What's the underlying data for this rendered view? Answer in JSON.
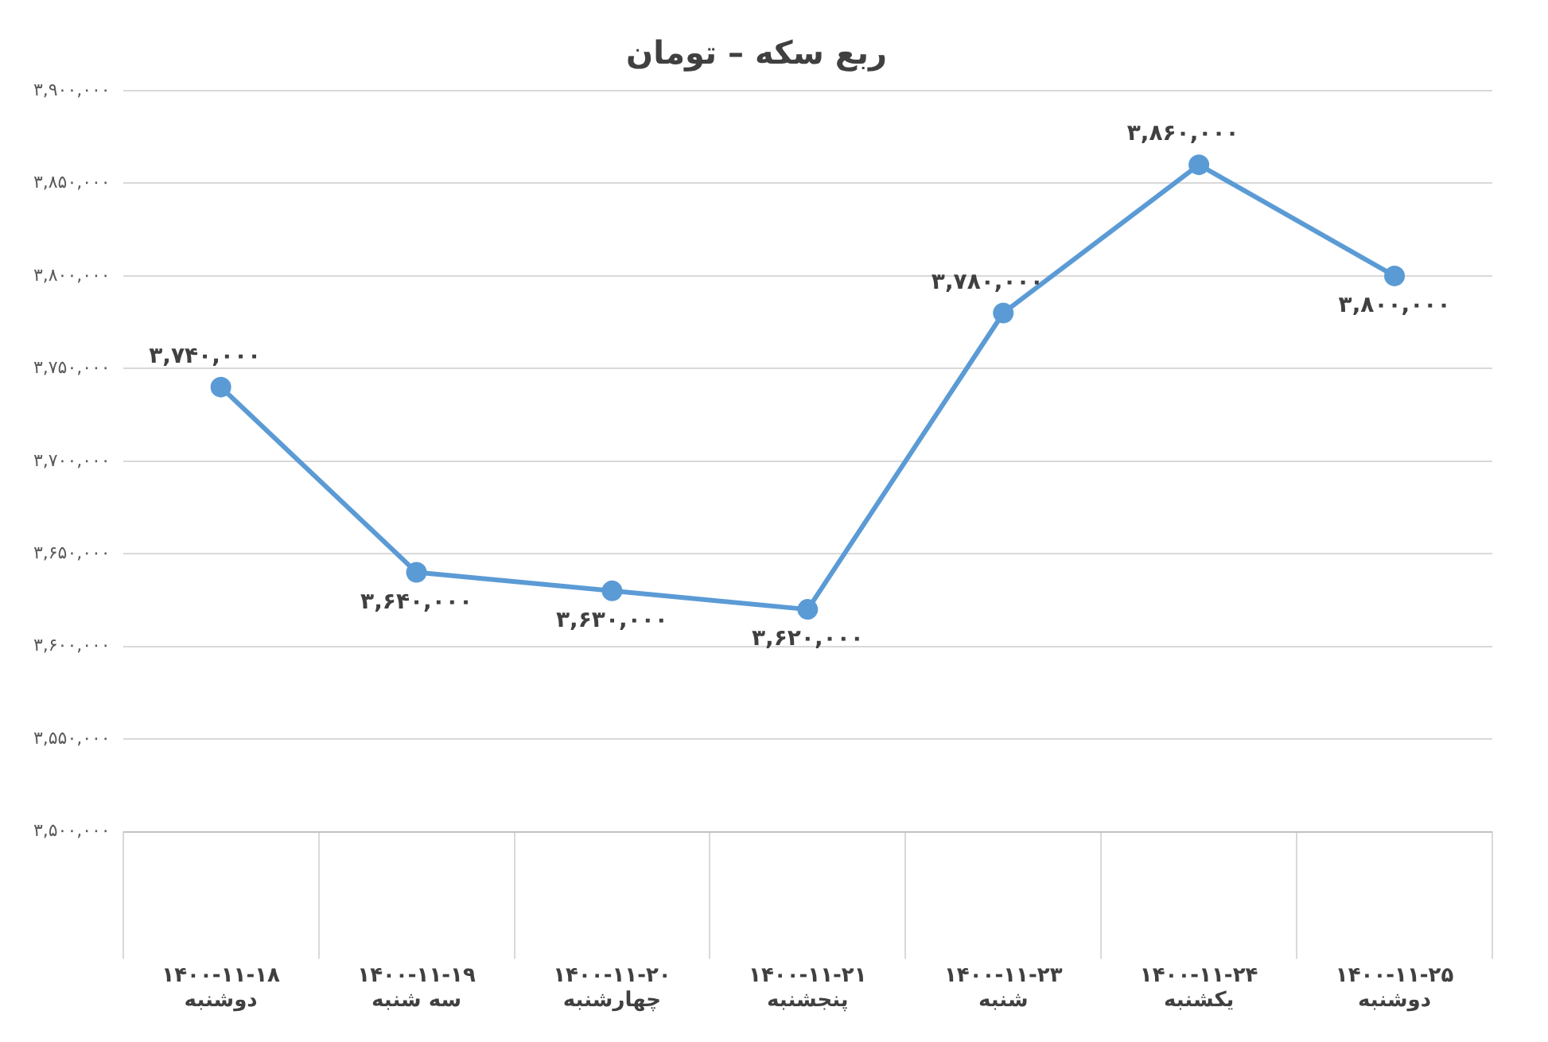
{
  "chart_data": {
    "type": "line",
    "title": "ربع سکه – تومان",
    "categories": [
      "۱۴۰۰-۱۱-۱۸\nدوشنبه",
      "۱۴۰۰-۱۱-۱۹\nسه شنبه",
      "۱۴۰۰-۱۱-۲۰\nچهارشنبه",
      "۱۴۰۰-۱۱-۲۱\nپنجشنبه",
      "۱۴۰۰-۱۱-۲۳\nشنبه",
      "۱۴۰۰-۱۱-۲۴\nیکشنبه",
      "۱۴۰۰-۱۱-۲۵\nدوشنبه"
    ],
    "series": [
      {
        "color": "#5b9bd5",
        "values": [
          3740000,
          3640000,
          3630000,
          3620000,
          3780000,
          3860000,
          3800000
        ],
        "value_labels": [
          "۳,۷۴۰,۰۰۰",
          "۳,۶۴۰,۰۰۰",
          "۳,۶۳۰,۰۰۰",
          "۳,۶۲۰,۰۰۰",
          "۳,۷۸۰,۰۰۰",
          "۳,۸۶۰,۰۰۰",
          "۳,۸۰۰,۰۰۰"
        ]
      }
    ],
    "ylim": [
      3500000,
      3900000
    ],
    "yticks": [
      {
        "value": 3500000,
        "label": "۳,۵۰۰,۰۰۰"
      },
      {
        "value": 3550000,
        "label": "۳,۵۵۰,۰۰۰"
      },
      {
        "value": 3600000,
        "label": "۳,۶۰۰,۰۰۰"
      },
      {
        "value": 3650000,
        "label": "۳,۶۵۰,۰۰۰"
      },
      {
        "value": 3700000,
        "label": "۳,۷۰۰,۰۰۰"
      },
      {
        "value": 3750000,
        "label": "۳,۷۵۰,۰۰۰"
      },
      {
        "value": 3800000,
        "label": "۳,۸۰۰,۰۰۰"
      },
      {
        "value": 3850000,
        "label": "۳,۸۵۰,۰۰۰"
      },
      {
        "value": 3900000,
        "label": "۳,۹۰۰,۰۰۰"
      }
    ],
    "grid": "y",
    "marker": "circle",
    "line_style": "solid",
    "legend": false
  }
}
